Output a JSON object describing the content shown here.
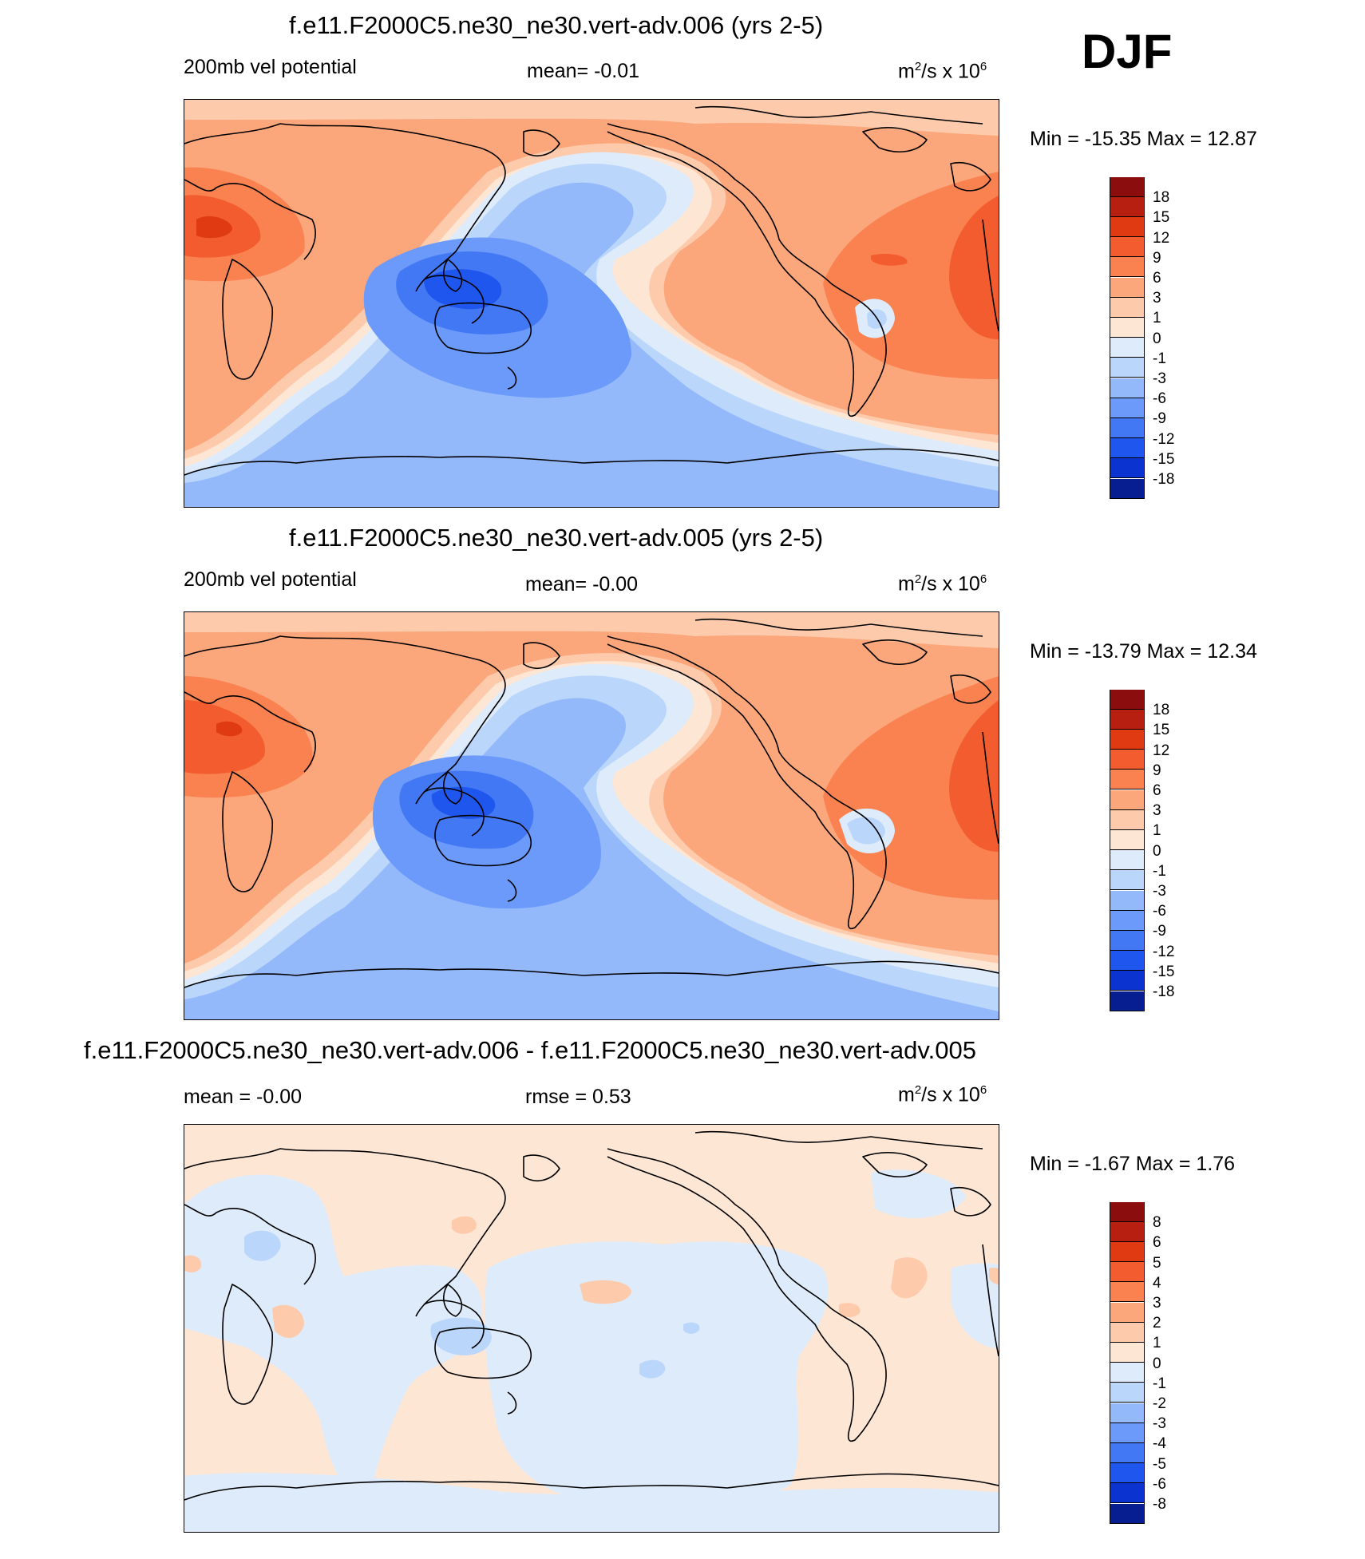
{
  "season": "DJF",
  "units_main": "m",
  "units_sup": "2",
  "units_tail": "/s x 10",
  "units_exp": "6",
  "panels": [
    {
      "title": "f.e11.F2000C5.ne30_ne30.vert-adv.006 (yrs 2-5)",
      "left": "200mb vel potential",
      "center": "mean=  -0.01",
      "minmax": "Min = -15.35 Max =  12.87",
      "colorbar": {
        "labels": [
          "18",
          "15",
          "12",
          "9",
          "6",
          "3",
          "1",
          "0",
          "-1",
          "-3",
          "-6",
          "-9",
          "-12",
          "-15",
          "-18"
        ],
        "colors": [
          "#8b0d0d",
          "#b71f10",
          "#df3a12",
          "#f25c2e",
          "#f98250",
          "#fca67b",
          "#fdcbac",
          "#fee6d4",
          "#deebfb",
          "#bbd6fb",
          "#93b9fb",
          "#6b9afa",
          "#4378f5",
          "#1f56ee",
          "#0a33cf",
          "#061e8f"
        ]
      },
      "map": {
        "variant": "a"
      }
    },
    {
      "title": "f.e11.F2000C5.ne30_ne30.vert-adv.005 (yrs 2-5)",
      "left": "200mb vel potential",
      "center": "mean=  -0.00",
      "minmax": "Min = -13.79 Max =  12.34",
      "colorbar": {
        "labels": [
          "18",
          "15",
          "12",
          "9",
          "6",
          "3",
          "1",
          "0",
          "-1",
          "-3",
          "-6",
          "-9",
          "-12",
          "-15",
          "-18"
        ],
        "colors": [
          "#8b0d0d",
          "#b71f10",
          "#df3a12",
          "#f25c2e",
          "#f98250",
          "#fca67b",
          "#fdcbac",
          "#fee6d4",
          "#deebfb",
          "#bbd6fb",
          "#93b9fb",
          "#6b9afa",
          "#4378f5",
          "#1f56ee",
          "#0a33cf",
          "#061e8f"
        ]
      },
      "map": {
        "variant": "b"
      }
    },
    {
      "title": "f.e11.F2000C5.ne30_ne30.vert-adv.006 - f.e11.F2000C5.ne30_ne30.vert-adv.005",
      "left": "mean =  -0.00",
      "center": "rmse =   0.53",
      "minmax": "Min =  -1.67 Max =   1.76",
      "colorbar": {
        "labels": [
          "8",
          "6",
          "5",
          "4",
          "3",
          "2",
          "1",
          "0",
          "-1",
          "-2",
          "-3",
          "-4",
          "-5",
          "-6",
          "-8"
        ],
        "colors": [
          "#8b0d0d",
          "#b71f10",
          "#df3a12",
          "#f25c2e",
          "#f98250",
          "#fca67b",
          "#fdcbac",
          "#fee6d4",
          "#deebfb",
          "#bbd6fb",
          "#93b9fb",
          "#6b9afa",
          "#4378f5",
          "#1f56ee",
          "#0a33cf",
          "#061e8f"
        ]
      },
      "map": {
        "variant": "diff"
      }
    }
  ]
}
